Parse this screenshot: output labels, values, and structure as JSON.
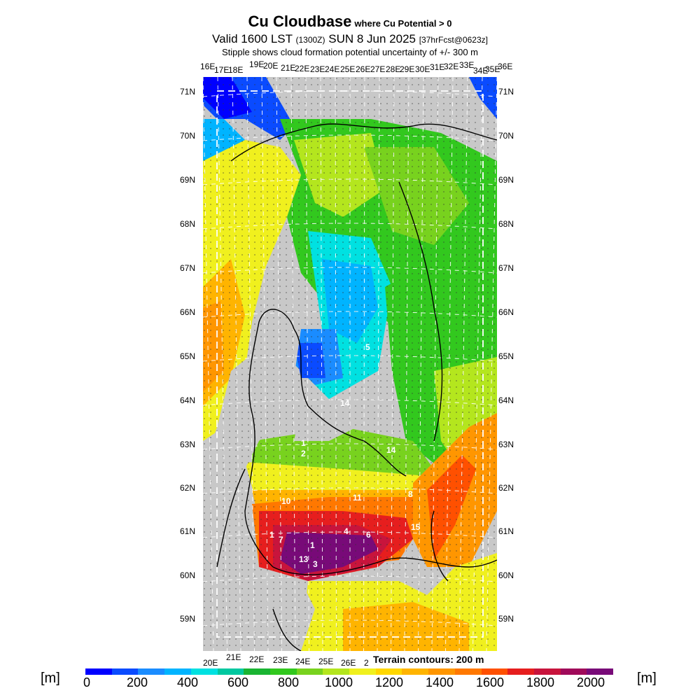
{
  "title": {
    "main": "Cu Cloudbase",
    "main_note": "where Cu Potential > 0",
    "valid_prefix": "Valid 1600 LST",
    "valid_utc": "(1300Z)",
    "valid_date": "SUN 8 Jun 2025",
    "forecast": "[37hrFcst@0623z]",
    "stipple_note": "Stipple shows cloud formation potential uncertainty of +/- 300 m"
  },
  "axes": {
    "top_lon_labels": [
      "16E",
      "17E",
      "18E",
      "19E",
      "20E",
      "21E",
      "22E",
      "23E",
      "24E",
      "25E",
      "26E",
      "27E",
      "28E",
      "29E",
      "30E",
      "31E",
      "32E",
      "33E",
      "34E",
      "35E",
      "36E"
    ],
    "bottom_lon_labels": [
      "20E",
      "21E",
      "22E",
      "23E",
      "24E",
      "25E",
      "26E",
      "2"
    ],
    "lat_labels": [
      "71N",
      "70N",
      "69N",
      "68N",
      "67N",
      "66N",
      "65N",
      "64N",
      "63N",
      "62N",
      "61N",
      "60N",
      "59N"
    ]
  },
  "terrain_note": "Terrain contours: 200 m",
  "legend": {
    "unit_left": "[m]",
    "unit_right": "[m]",
    "ticks": [
      "0",
      "200",
      "400",
      "600",
      "800",
      "1000",
      "1200",
      "1400",
      "1600",
      "1800",
      "2000"
    ],
    "colors": [
      "#0000ff",
      "#0a4bff",
      "#1a8cff",
      "#00b4ff",
      "#00e1e1",
      "#00c8a0",
      "#19b432",
      "#32c81e",
      "#78d21e",
      "#b4e61e",
      "#f0f01e",
      "#ffd700",
      "#ffb400",
      "#ff9600",
      "#ff7800",
      "#ff5000",
      "#e61e1e",
      "#c8143c",
      "#a00a5a",
      "#780a78"
    ]
  },
  "map_labels": [
    "5",
    "14",
    "2",
    "1",
    "14",
    "8",
    "10",
    "11",
    "15",
    "1",
    "7",
    "1",
    "4",
    "6",
    "13",
    "3"
  ]
}
